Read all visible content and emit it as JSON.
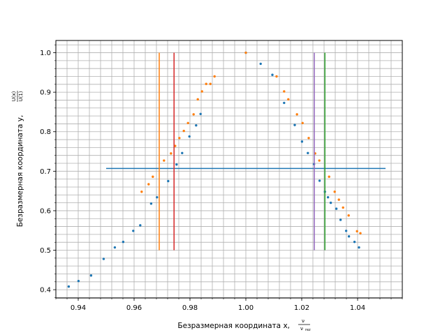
{
  "figure": {
    "background": "#ffffff",
    "grid_color": "#b0b0b0"
  },
  "chart_data": {
    "type": "scatter",
    "title": "",
    "xlabel": "Безразмерная координата x,",
    "xlabel_symbol": "ν",
    "xlabel_symbol_sub": "ν",
    "xlabel_symbol_sub_index": "rez",
    "ylabel": "Безразмерная координата y,",
    "ylabel_fraction_numerator": "U(x)",
    "ylabel_fraction_denominator": "U(1)",
    "xlim": [
      0.932,
      1.056
    ],
    "ylim": [
      0.379,
      1.031
    ],
    "xticks": [
      0.94,
      0.96,
      0.98,
      1.0,
      1.02,
      1.04
    ],
    "xtick_labels": [
      "0.94",
      "0.96",
      "0.98",
      "1.00",
      "1.02",
      "1.04"
    ],
    "yticks": [
      0.4,
      0.5,
      0.6,
      0.7,
      0.8,
      0.9,
      1.0
    ],
    "ytick_labels": [
      "0.4",
      "0.5",
      "0.6",
      "0.7",
      "0.8",
      "0.9",
      "1.0"
    ],
    "minor_step_x": 0.004,
    "minor_step_y": 0.02,
    "grid": "major and minor",
    "legend": "none",
    "series": [
      {
        "kind": "points",
        "color": "#1f77b4",
        "x": [
          0.9366,
          0.9401,
          0.9446,
          0.9491,
          0.9531,
          0.9561,
          0.9597,
          0.9622,
          0.9661,
          0.9682,
          0.9722,
          0.9752,
          0.9772,
          0.9798,
          0.9822,
          0.9838,
          1.0,
          1.0053,
          1.0095,
          1.0137,
          1.0175,
          1.0201,
          1.0222,
          1.0244,
          1.0264,
          1.0283,
          1.0294,
          1.0304,
          1.0324,
          1.0339,
          1.0359,
          1.0369,
          1.0389,
          1.0405
        ],
        "y": [
          0.408,
          0.422,
          0.436,
          0.478,
          0.507,
          0.521,
          0.549,
          0.563,
          0.618,
          0.634,
          0.675,
          0.717,
          0.746,
          0.788,
          0.816,
          0.845,
          1.0,
          0.972,
          0.944,
          0.873,
          0.817,
          0.775,
          0.746,
          0.718,
          0.676,
          0.648,
          0.634,
          0.62,
          0.605,
          0.577,
          0.549,
          0.535,
          0.521,
          0.507
        ]
      },
      {
        "kind": "points",
        "color": "#ff7f0e",
        "x": [
          0.9627,
          0.9652,
          0.9667,
          0.9707,
          0.9732,
          0.9747,
          0.9762,
          0.9778,
          0.9793,
          0.9813,
          0.9828,
          0.9843,
          0.9858,
          0.9873,
          0.9888,
          1.0,
          1.011,
          1.0137,
          1.0152,
          1.0183,
          1.0203,
          1.0225,
          1.0248,
          1.0263,
          1.0298,
          1.0318,
          1.0333,
          1.0348,
          1.0368,
          1.0398,
          1.041
        ],
        "y": [
          0.648,
          0.667,
          0.686,
          0.727,
          0.745,
          0.764,
          0.784,
          0.802,
          0.822,
          0.844,
          0.882,
          0.902,
          0.921,
          0.921,
          0.94,
          1.0,
          0.94,
          0.902,
          0.882,
          0.844,
          0.822,
          0.784,
          0.745,
          0.727,
          0.686,
          0.648,
          0.628,
          0.608,
          0.588,
          0.548,
          0.543
        ]
      },
      {
        "kind": "hline",
        "color": "#1f77b4",
        "x": [
          0.95,
          1.05
        ],
        "y": [
          0.707,
          0.707
        ]
      },
      {
        "kind": "vline",
        "color": "#ff7f0e",
        "x": [
          0.969,
          0.969
        ],
        "y": [
          0.5,
          1.0
        ]
      },
      {
        "kind": "vline",
        "color": "#2ca02c",
        "x": [
          1.0283,
          1.0283
        ],
        "y": [
          0.5,
          1.0
        ]
      },
      {
        "kind": "vline",
        "color": "#d62728",
        "x": [
          0.9743,
          0.9743
        ],
        "y": [
          0.5,
          1.0
        ]
      },
      {
        "kind": "vline",
        "color": "#9467bd",
        "x": [
          1.0245,
          1.0245
        ],
        "y": [
          0.5,
          1.0
        ]
      }
    ]
  }
}
